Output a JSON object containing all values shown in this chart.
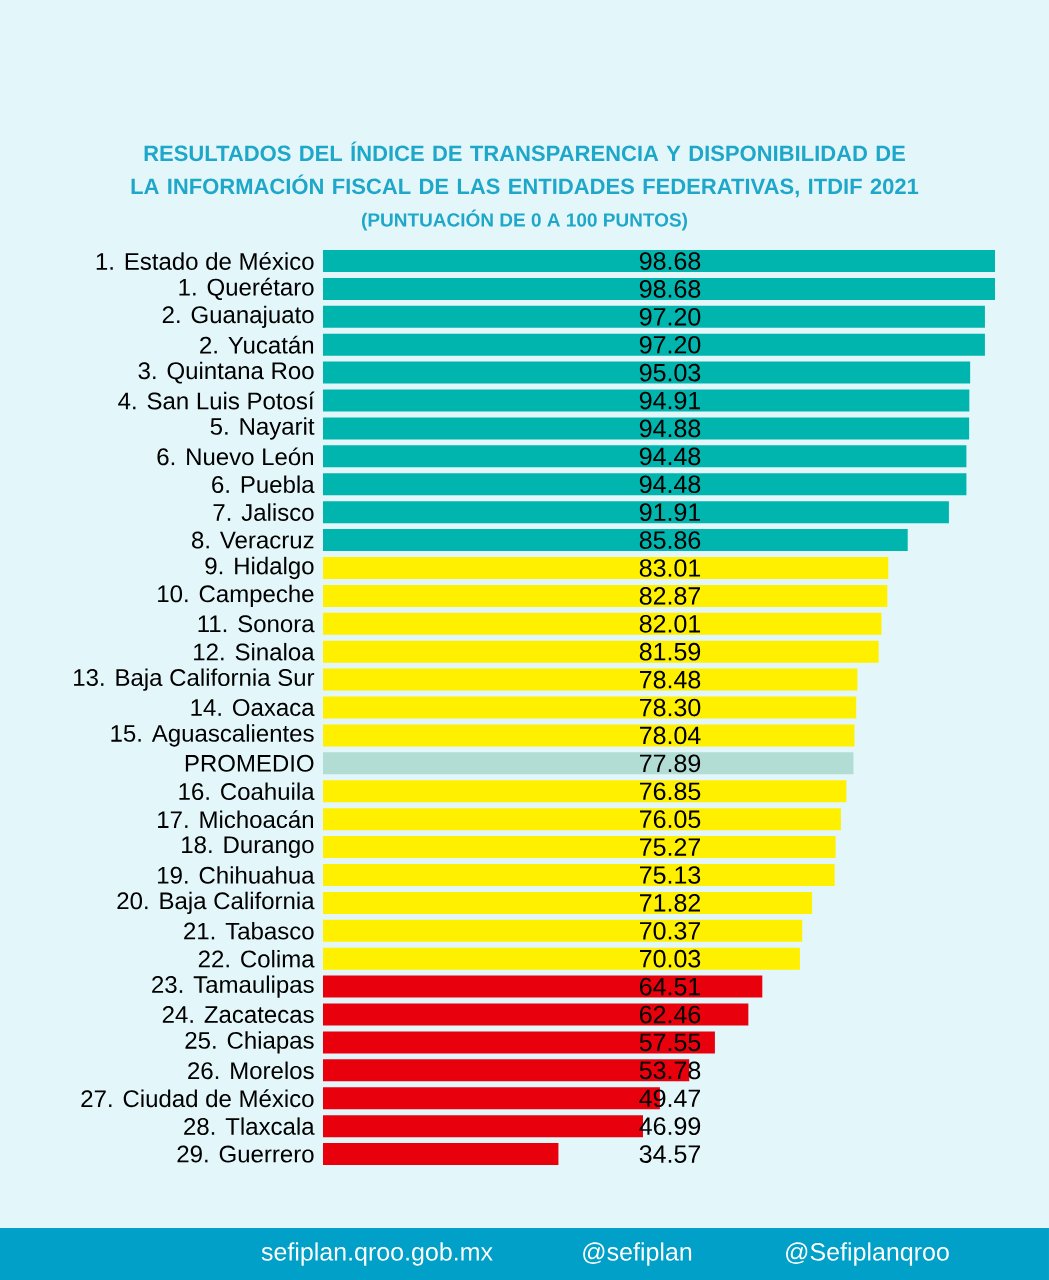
{
  "chart_data": {
    "type": "bar",
    "orientation": "horizontal",
    "title": "RESULTADOS DEL ÍNDICE DE TRANSPARENCIA Y DISPONIBILIDAD DE LA INFORMACIÓN FISCAL DE LAS ENTIDADES FEDERATIVAS, ITDIF 2021",
    "subtitle": "(PUNTUACIÓN DE 0 A 100 PUNTOS)",
    "categories": [
      "1. Estado de México",
      "1. Querétaro",
      "2. Guanajuato",
      "2. Yucatán",
      "3. Quintana Roo",
      "4. San Luis Potosí",
      "5. Nayarit",
      "6. Nuevo León",
      "6. Puebla",
      "7. Jalisco",
      "8. Veracruz",
      "9. Hidalgo",
      "10. Campeche",
      "11. Sonora",
      "12. Sinaloa",
      "13. Baja California Sur",
      "14. Oaxaca",
      "15. Aguascalientes",
      "PROMEDIO",
      "16. Coahuila",
      "17. Michoacán",
      "18. Durango",
      "19. Chihuahua",
      "20. Baja California",
      "21. Tabasco",
      "22. Colima",
      "23. Tamaulipas",
      "24. Zacatecas",
      "25. Chiapas",
      "26. Morelos",
      "27. Ciudad de México",
      "28. Tlaxcala",
      "29. Guerrero"
    ],
    "values": [
      98.68,
      98.68,
      97.2,
      97.2,
      95.03,
      94.91,
      94.88,
      94.48,
      94.48,
      91.91,
      85.86,
      83.01,
      82.87,
      82.01,
      81.59,
      78.48,
      78.3,
      78.04,
      77.89,
      76.85,
      76.05,
      75.27,
      75.13,
      71.82,
      70.37,
      70.03,
      64.51,
      62.46,
      57.55,
      53.78,
      49.47,
      46.99,
      34.57
    ],
    "value_labels": [
      "98.68",
      "98.68",
      "97.20",
      "97.20",
      "95.03",
      "94.91",
      "94.88",
      "94.48",
      "94.48",
      "91.91",
      "85.86",
      "83.01",
      "82.87",
      "82.01",
      "81.59",
      "78.48",
      "78.30",
      "78.04",
      "77.89",
      "76.85",
      "76.05",
      "75.27",
      "75.13",
      "71.82",
      "70.37",
      "70.03",
      "64.51",
      "62.46",
      "57.55",
      "53.78",
      "49.47",
      "46.99",
      "34.57"
    ],
    "colors": [
      "#00b5ad",
      "#00b5ad",
      "#00b5ad",
      "#00b5ad",
      "#00b5ad",
      "#00b5ad",
      "#00b5ad",
      "#00b5ad",
      "#00b5ad",
      "#00b5ad",
      "#00b5ad",
      "#fff000",
      "#fff000",
      "#fff000",
      "#fff000",
      "#fff000",
      "#fff000",
      "#fff000",
      "#b2ddd4",
      "#fff000",
      "#fff000",
      "#fff000",
      "#fff000",
      "#fff000",
      "#fff000",
      "#fff000",
      "#e8000d",
      "#e8000d",
      "#e8000d",
      "#e8000d",
      "#e8000d",
      "#e8000d",
      "#e8000d"
    ],
    "tick_labels": "y",
    "annotations": [
      "sefiplan.qroo.gob.mx",
      "@sefiplan",
      "@Sefiplanqroo"
    ]
  }
}
